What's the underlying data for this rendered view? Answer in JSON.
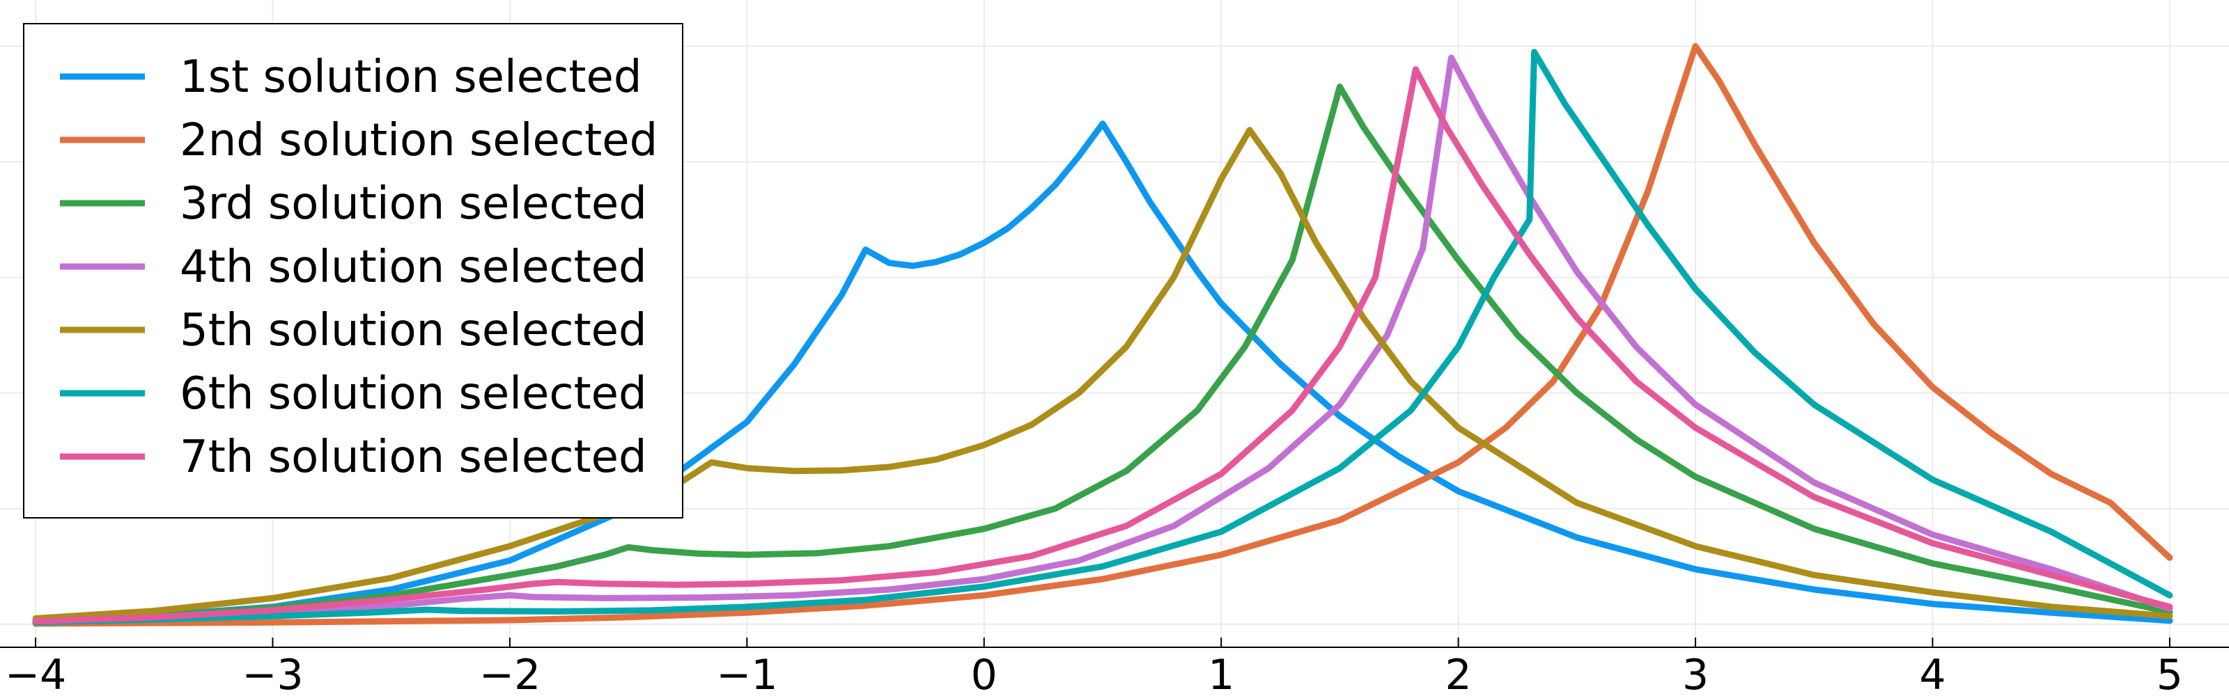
{
  "chart_data": {
    "type": "line",
    "title": "",
    "xlabel": "",
    "ylabel": "",
    "xlim": [
      -4.15,
      5.25
    ],
    "ylim": [
      -0.04,
      1.08
    ],
    "x_ticks": [
      {
        "value": -4,
        "label": "−4"
      },
      {
        "value": -3,
        "label": "−3"
      },
      {
        "value": -2,
        "label": "−2"
      },
      {
        "value": -1,
        "label": "−1"
      },
      {
        "value": 0,
        "label": "0"
      },
      {
        "value": 1,
        "label": "1"
      },
      {
        "value": 2,
        "label": "2"
      },
      {
        "value": 3,
        "label": "3"
      },
      {
        "value": 4,
        "label": "4"
      },
      {
        "value": 5,
        "label": "5"
      }
    ],
    "y_grid": [
      0.0,
      0.2,
      0.4,
      0.6,
      0.8,
      1.0
    ],
    "show_y_tick_labels": false,
    "grid": true,
    "legend_position": "top-left",
    "x_range": [
      -4,
      5
    ],
    "series": [
      {
        "name": "1st solution selected",
        "color": "#0e97f0",
        "points": [
          [
            -4,
            0.005
          ],
          [
            -3.5,
            0.015
          ],
          [
            -3,
            0.03
          ],
          [
            -2.5,
            0.06
          ],
          [
            -2,
            0.11
          ],
          [
            -1.5,
            0.2
          ],
          [
            -1,
            0.35
          ],
          [
            -0.8,
            0.45
          ],
          [
            -0.6,
            0.57
          ],
          [
            -0.5,
            0.648
          ],
          [
            -0.4,
            0.625
          ],
          [
            -0.3,
            0.62
          ],
          [
            -0.2,
            0.627
          ],
          [
            -0.1,
            0.64
          ],
          [
            0,
            0.66
          ],
          [
            0.1,
            0.685
          ],
          [
            0.2,
            0.72
          ],
          [
            0.3,
            0.76
          ],
          [
            0.4,
            0.81
          ],
          [
            0.5,
            0.866
          ],
          [
            0.6,
            0.8
          ],
          [
            0.7,
            0.73
          ],
          [
            0.8,
            0.67
          ],
          [
            0.9,
            0.61
          ],
          [
            1,
            0.555
          ],
          [
            1.25,
            0.45
          ],
          [
            1.5,
            0.36
          ],
          [
            1.75,
            0.29
          ],
          [
            2,
            0.23
          ],
          [
            2.5,
            0.15
          ],
          [
            3,
            0.095
          ],
          [
            3.5,
            0.06
          ],
          [
            4,
            0.035
          ],
          [
            4.5,
            0.02
          ],
          [
            5,
            0.006
          ]
        ]
      },
      {
        "name": "2nd solution selected",
        "color": "#e2703f",
        "points": [
          [
            -4,
            0.001
          ],
          [
            -3,
            0.003
          ],
          [
            -2,
            0.007
          ],
          [
            -1.5,
            0.012
          ],
          [
            -1,
            0.02
          ],
          [
            -0.5,
            0.032
          ],
          [
            0,
            0.05
          ],
          [
            0.5,
            0.078
          ],
          [
            1,
            0.12
          ],
          [
            1.5,
            0.18
          ],
          [
            2,
            0.28
          ],
          [
            2.2,
            0.34
          ],
          [
            2.4,
            0.42
          ],
          [
            2.6,
            0.55
          ],
          [
            2.8,
            0.75
          ],
          [
            3,
            1.0
          ],
          [
            3.1,
            0.94
          ],
          [
            3.25,
            0.83
          ],
          [
            3.5,
            0.66
          ],
          [
            3.75,
            0.52
          ],
          [
            4,
            0.41
          ],
          [
            4.25,
            0.33
          ],
          [
            4.5,
            0.26
          ],
          [
            4.75,
            0.21
          ],
          [
            5,
            0.115
          ]
        ]
      },
      {
        "name": "3rd solution selected",
        "color": "#38a14a",
        "points": [
          [
            -4,
            0.006
          ],
          [
            -3.5,
            0.014
          ],
          [
            -3,
            0.028
          ],
          [
            -2.5,
            0.05
          ],
          [
            -2,
            0.085
          ],
          [
            -1.8,
            0.1
          ],
          [
            -1.6,
            0.12
          ],
          [
            -1.5,
            0.133
          ],
          [
            -1.4,
            0.128
          ],
          [
            -1.2,
            0.122
          ],
          [
            -1,
            0.12
          ],
          [
            -0.7,
            0.123
          ],
          [
            -0.4,
            0.135
          ],
          [
            0,
            0.165
          ],
          [
            0.3,
            0.2
          ],
          [
            0.6,
            0.265
          ],
          [
            0.9,
            0.37
          ],
          [
            1.1,
            0.48
          ],
          [
            1.3,
            0.63
          ],
          [
            1.5,
            0.93
          ],
          [
            1.6,
            0.86
          ],
          [
            1.75,
            0.77
          ],
          [
            2,
            0.63
          ],
          [
            2.25,
            0.5
          ],
          [
            2.5,
            0.4
          ],
          [
            2.75,
            0.32
          ],
          [
            3,
            0.255
          ],
          [
            3.5,
            0.165
          ],
          [
            4,
            0.105
          ],
          [
            4.5,
            0.065
          ],
          [
            5,
            0.021
          ]
        ]
      },
      {
        "name": "4th solution selected",
        "color": "#c271d2",
        "points": [
          [
            -4,
            0.004
          ],
          [
            -3.5,
            0.009
          ],
          [
            -3,
            0.018
          ],
          [
            -2.5,
            0.032
          ],
          [
            -2.2,
            0.044
          ],
          [
            -2,
            0.05
          ],
          [
            -1.9,
            0.047
          ],
          [
            -1.6,
            0.045
          ],
          [
            -1.2,
            0.046
          ],
          [
            -0.8,
            0.05
          ],
          [
            -0.4,
            0.06
          ],
          [
            0,
            0.078
          ],
          [
            0.4,
            0.11
          ],
          [
            0.8,
            0.17
          ],
          [
            1.2,
            0.27
          ],
          [
            1.5,
            0.38
          ],
          [
            1.7,
            0.5
          ],
          [
            1.85,
            0.65
          ],
          [
            1.97,
            0.98
          ],
          [
            2.1,
            0.88
          ],
          [
            2.3,
            0.74
          ],
          [
            2.5,
            0.61
          ],
          [
            2.75,
            0.48
          ],
          [
            3,
            0.38
          ],
          [
            3.5,
            0.245
          ],
          [
            4,
            0.155
          ],
          [
            4.5,
            0.095
          ],
          [
            5,
            0.027
          ]
        ]
      },
      {
        "name": "5th solution selected",
        "color": "#ac8d1a",
        "points": [
          [
            -4,
            0.01
          ],
          [
            -3.5,
            0.023
          ],
          [
            -3,
            0.045
          ],
          [
            -2.5,
            0.08
          ],
          [
            -2,
            0.135
          ],
          [
            -1.6,
            0.19
          ],
          [
            -1.3,
            0.24
          ],
          [
            -1.15,
            0.28
          ],
          [
            -1,
            0.27
          ],
          [
            -0.8,
            0.265
          ],
          [
            -0.6,
            0.266
          ],
          [
            -0.4,
            0.272
          ],
          [
            -0.2,
            0.285
          ],
          [
            0,
            0.31
          ],
          [
            0.2,
            0.345
          ],
          [
            0.4,
            0.4
          ],
          [
            0.6,
            0.48
          ],
          [
            0.8,
            0.6
          ],
          [
            1,
            0.77
          ],
          [
            1.12,
            0.855
          ],
          [
            1.25,
            0.78
          ],
          [
            1.4,
            0.66
          ],
          [
            1.6,
            0.53
          ],
          [
            1.8,
            0.42
          ],
          [
            2,
            0.34
          ],
          [
            2.5,
            0.21
          ],
          [
            3,
            0.135
          ],
          [
            3.5,
            0.085
          ],
          [
            4,
            0.055
          ],
          [
            4.5,
            0.03
          ],
          [
            5,
            0.014
          ]
        ]
      },
      {
        "name": "6th solution selected",
        "color": "#00a9ad",
        "points": [
          [
            -4,
            0.003
          ],
          [
            -3.5,
            0.008
          ],
          [
            -3,
            0.014
          ],
          [
            -2.6,
            0.02
          ],
          [
            -2.35,
            0.025
          ],
          [
            -2.2,
            0.023
          ],
          [
            -1.8,
            0.022
          ],
          [
            -1.4,
            0.024
          ],
          [
            -1,
            0.03
          ],
          [
            -0.5,
            0.042
          ],
          [
            0,
            0.065
          ],
          [
            0.5,
            0.1
          ],
          [
            1,
            0.16
          ],
          [
            1.5,
            0.27
          ],
          [
            1.8,
            0.37
          ],
          [
            2,
            0.48
          ],
          [
            2.15,
            0.6
          ],
          [
            2.3,
            0.7
          ],
          [
            2.32,
            0.99
          ],
          [
            2.45,
            0.9
          ],
          [
            2.6,
            0.81
          ],
          [
            2.8,
            0.69
          ],
          [
            3,
            0.58
          ],
          [
            3.25,
            0.47
          ],
          [
            3.5,
            0.38
          ],
          [
            4,
            0.25
          ],
          [
            4.5,
            0.16
          ],
          [
            5,
            0.05
          ]
        ]
      },
      {
        "name": "7th solution selected",
        "color": "#e4589a",
        "points": [
          [
            -4,
            0.005
          ],
          [
            -3.5,
            0.012
          ],
          [
            -3,
            0.024
          ],
          [
            -2.5,
            0.043
          ],
          [
            -2.1,
            0.06
          ],
          [
            -1.9,
            0.07
          ],
          [
            -1.8,
            0.073
          ],
          [
            -1.6,
            0.07
          ],
          [
            -1.3,
            0.068
          ],
          [
            -1,
            0.07
          ],
          [
            -0.6,
            0.076
          ],
          [
            -0.2,
            0.09
          ],
          [
            0.2,
            0.118
          ],
          [
            0.6,
            0.17
          ],
          [
            1,
            0.26
          ],
          [
            1.3,
            0.37
          ],
          [
            1.5,
            0.48
          ],
          [
            1.65,
            0.6
          ],
          [
            1.82,
            0.96
          ],
          [
            1.95,
            0.86
          ],
          [
            2.1,
            0.76
          ],
          [
            2.3,
            0.64
          ],
          [
            2.5,
            0.53
          ],
          [
            2.75,
            0.42
          ],
          [
            3,
            0.34
          ],
          [
            3.5,
            0.22
          ],
          [
            4,
            0.14
          ],
          [
            4.5,
            0.085
          ],
          [
            5,
            0.03
          ]
        ]
      }
    ]
  }
}
